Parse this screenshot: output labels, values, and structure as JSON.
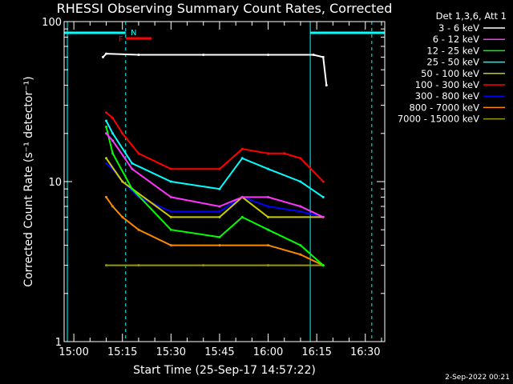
{
  "chart_data": {
    "type": "line",
    "title": "RHESSI Observing Summary Count Rates, Corrected",
    "xlabel": "Start Time (25-Sep-17 14:57:22)",
    "ylabel": "Corrected Count Rate (s⁻¹ detector⁻¹)",
    "y_scale": "log",
    "ylim": [
      1,
      100
    ],
    "xlim": [
      "14:57",
      "16:36"
    ],
    "x_ticks": [
      "15:00",
      "15:15",
      "15:30",
      "15:45",
      "16:00",
      "16:15",
      "16:30"
    ],
    "y_ticks": [
      "1",
      "10",
      "100"
    ],
    "grid": false,
    "legend_title": "Det 1,3,6, Att 1",
    "legend_position": "outside-right",
    "series": [
      {
        "name": "3 - 6 keV",
        "color": "#ffffff",
        "times": [
          "15:09",
          "15:10",
          "15:20",
          "15:40",
          "16:00",
          "16:14",
          "16:17",
          "16:18"
        ],
        "values": [
          60,
          63,
          62,
          62,
          62,
          62,
          60,
          40
        ]
      },
      {
        "name": "6 - 12 keV",
        "color": "#ff33ff",
        "times": [
          "15:10",
          "15:12",
          "15:18",
          "15:30",
          "15:45",
          "15:52",
          "16:00",
          "16:10",
          "16:17"
        ],
        "values": [
          20,
          18,
          12,
          8,
          7,
          8,
          8,
          7,
          6
        ]
      },
      {
        "name": "12 - 25 keV",
        "color": "#00ff00",
        "times": [
          "15:10",
          "15:12",
          "15:18",
          "15:30",
          "15:45",
          "15:52",
          "16:00",
          "16:10",
          "16:17"
        ],
        "values": [
          22,
          15,
          9,
          5,
          4.5,
          6,
          5,
          4,
          3
        ]
      },
      {
        "name": "25 - 50 keV",
        "color": "#00ffff",
        "times": [
          "15:10",
          "15:12",
          "15:18",
          "15:30",
          "15:45",
          "15:52",
          "16:00",
          "16:10",
          "16:17"
        ],
        "values": [
          24,
          20,
          13,
          10,
          9,
          14,
          12,
          10,
          8
        ]
      },
      {
        "name": "50 - 100 keV",
        "color": "#cccc00",
        "times": [
          "15:10",
          "15:15",
          "15:30",
          "15:45",
          "15:52",
          "16:00",
          "16:17"
        ],
        "values": [
          14,
          10,
          6,
          6,
          8,
          6,
          6
        ]
      },
      {
        "name": "100 - 300 keV",
        "color": "#ff0000",
        "times": [
          "15:10",
          "15:12",
          "15:15",
          "15:20",
          "15:30",
          "15:45",
          "15:52",
          "16:00",
          "16:05",
          "16:10",
          "16:17"
        ],
        "values": [
          27,
          25,
          20,
          15,
          12,
          12,
          16,
          15,
          15,
          14,
          10
        ]
      },
      {
        "name": "300 - 800 keV",
        "color": "#0000ff",
        "times": [
          "15:10",
          "15:12",
          "15:15",
          "15:20",
          "15:30",
          "15:45",
          "15:52",
          "16:00",
          "16:10",
          "16:17"
        ],
        "values": [
          13,
          12,
          10,
          8,
          6.5,
          6.5,
          8,
          7,
          6.5,
          6
        ]
      },
      {
        "name": "800 - 7000 keV",
        "color": "#ff8800",
        "times": [
          "15:10",
          "15:12",
          "15:15",
          "15:20",
          "15:30",
          "15:45",
          "16:00",
          "16:10",
          "16:17"
        ],
        "values": [
          8,
          7,
          6,
          5,
          4,
          4,
          4,
          3.5,
          3
        ]
      },
      {
        "name": "7000 - 15000 keV",
        "color": "#999900",
        "times": [
          "15:10",
          "15:20",
          "15:40",
          "16:00",
          "16:17"
        ],
        "values": [
          3,
          3,
          3,
          3,
          3
        ]
      }
    ],
    "flags": {
      "night_label": "N",
      "flare_label": "F",
      "night_color": "#00ffff",
      "flare_color": "#ff0000"
    }
  },
  "footer_timestamp": "2-Sep-2022 00:21"
}
